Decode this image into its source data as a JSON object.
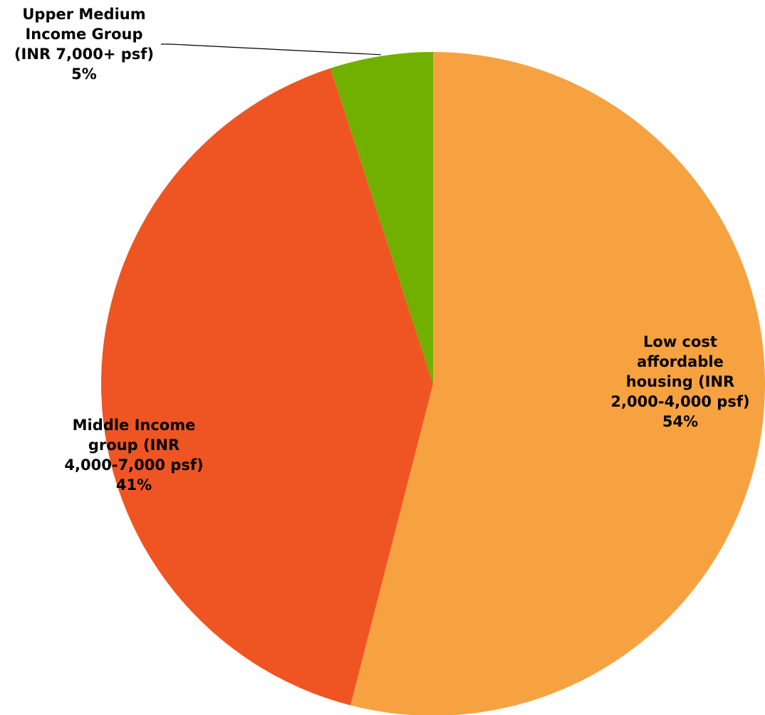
{
  "chart_data": {
    "type": "pie",
    "start_angle": "12 o'clock",
    "direction": "clockwise",
    "legend": "none",
    "slices": [
      {
        "label_lines": [
          "Low cost",
          "affordable",
          "housing (INR",
          "2,000-4,000 psf)"
        ],
        "value": 54,
        "value_label": "54%",
        "color": "#F7A241"
      },
      {
        "label_lines": [
          "Middle Income",
          "group (INR",
          "4,000-7,000 psf)"
        ],
        "value": 41,
        "value_label": "41%",
        "color": "#EF5523"
      },
      {
        "label_lines": [
          "Upper Medium",
          "Income Group",
          "(INR 7,000+ psf)"
        ],
        "value": 5,
        "value_label": "5%",
        "color": "#72B000"
      }
    ]
  }
}
